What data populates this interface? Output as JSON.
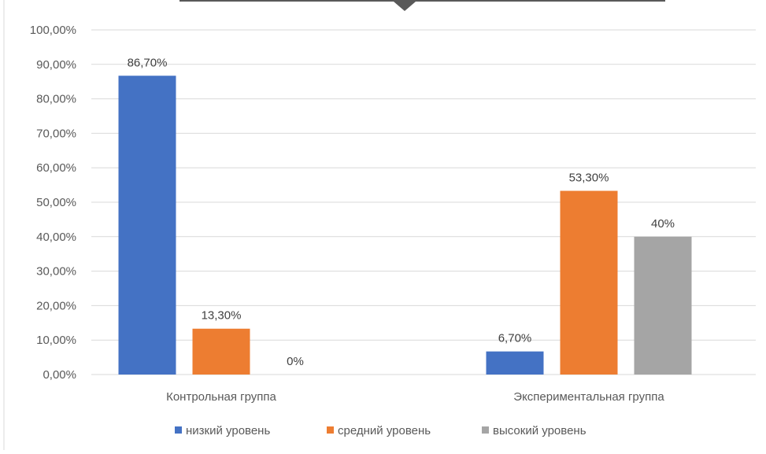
{
  "chart_data": {
    "type": "bar",
    "categories": [
      "Контрольная группа",
      "Экспериментальная группа"
    ],
    "series": [
      {
        "name": "низкий уровень",
        "color": "#4472C4",
        "values": [
          86.7,
          6.7
        ],
        "labels": [
          "86,70%",
          "6,70%"
        ]
      },
      {
        "name": "средний уровень",
        "color": "#ED7D31",
        "values": [
          13.3,
          53.3
        ],
        "labels": [
          "13,30%",
          "53,30%"
        ]
      },
      {
        "name": "высокий уровень",
        "color": "#A5A5A5",
        "values": [
          0,
          40
        ],
        "labels": [
          "0%",
          "40%"
        ]
      }
    ],
    "ylim": [
      0,
      100
    ],
    "yticks": [
      0,
      10,
      20,
      30,
      40,
      50,
      60,
      70,
      80,
      90,
      100
    ],
    "ytick_labels": [
      "0,00%",
      "10,00%",
      "20,00%",
      "30,00%",
      "40,00%",
      "50,00%",
      "60,00%",
      "70,00%",
      "80,00%",
      "90,00%",
      "100,00%"
    ],
    "grid": true,
    "legend_position": "bottom",
    "colors": {
      "gridline": "#D9D9D9",
      "text": "#595959",
      "label_text": "#404040",
      "frame_lines": "#595959"
    }
  }
}
